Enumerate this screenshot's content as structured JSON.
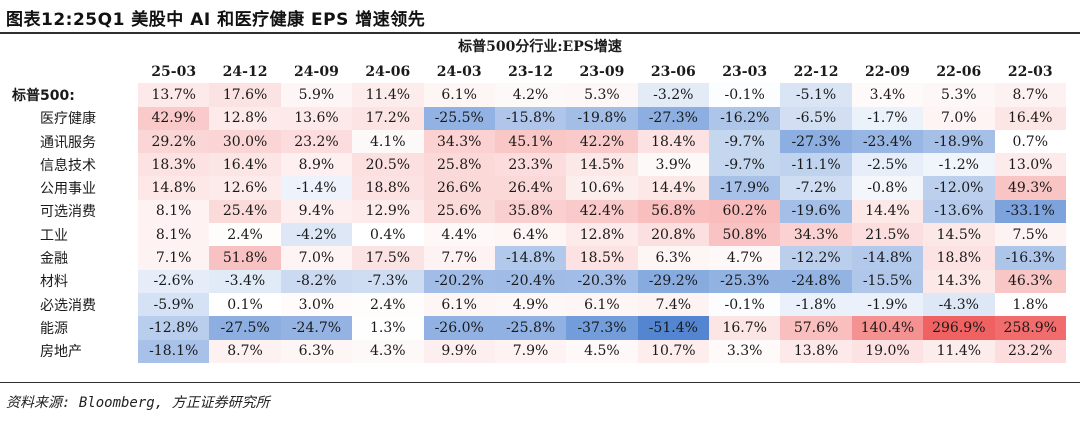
{
  "title": "图表12:25Q1 美股中 AI 和医疗健康 EPS 增速领先",
  "source": "资料来源: Bloomberg, 方正证券研究所",
  "chart_data": {
    "type": "heatmap",
    "title": "标普500分行业:EPS增速",
    "columns": [
      "25-03",
      "24-12",
      "24-09",
      "24-06",
      "24-03",
      "23-12",
      "23-09",
      "23-06",
      "23-03",
      "22-12",
      "22-09",
      "22-06",
      "22-03"
    ],
    "rows": [
      {
        "label": "标普500:",
        "values": [
          "13.7%",
          "17.6%",
          "5.9%",
          "11.4%",
          "6.1%",
          "4.2%",
          "5.3%",
          "-3.2%",
          "-0.1%",
          "-5.1%",
          "3.4%",
          "5.3%",
          "8.7%"
        ]
      },
      {
        "label": "医疗健康",
        "values": [
          "42.9%",
          "12.8%",
          "13.6%",
          "17.2%",
          "-25.5%",
          "-15.8%",
          "-19.8%",
          "-27.3%",
          "-16.2%",
          "-6.5%",
          "-1.7%",
          "7.0%",
          "16.4%"
        ]
      },
      {
        "label": "通讯服务",
        "values": [
          "29.2%",
          "30.0%",
          "23.2%",
          "4.1%",
          "34.3%",
          "45.1%",
          "42.2%",
          "18.4%",
          "-9.7%",
          "-27.3%",
          "-23.4%",
          "-18.9%",
          "0.7%"
        ]
      },
      {
        "label": "信息技术",
        "values": [
          "18.3%",
          "16.4%",
          "8.9%",
          "20.5%",
          "25.8%",
          "23.3%",
          "14.5%",
          "3.9%",
          "-9.7%",
          "-11.1%",
          "-2.5%",
          "-1.2%",
          "13.0%"
        ]
      },
      {
        "label": "公用事业",
        "values": [
          "14.8%",
          "12.6%",
          "-1.4%",
          "18.8%",
          "26.6%",
          "26.4%",
          "10.6%",
          "14.4%",
          "-17.9%",
          "-7.2%",
          "-0.8%",
          "-12.0%",
          "49.3%"
        ]
      },
      {
        "label": "可选消费",
        "values": [
          "8.1%",
          "25.4%",
          "9.4%",
          "12.9%",
          "25.6%",
          "35.8%",
          "42.4%",
          "56.8%",
          "60.2%",
          "-19.6%",
          "14.4%",
          "-13.6%",
          "-33.1%"
        ]
      },
      {
        "label": "工业",
        "values": [
          "8.1%",
          "2.4%",
          "-4.2%",
          "0.4%",
          "4.4%",
          "6.4%",
          "12.8%",
          "20.8%",
          "50.8%",
          "34.3%",
          "21.5%",
          "14.5%",
          "7.5%"
        ]
      },
      {
        "label": "金融",
        "values": [
          "7.1%",
          "51.8%",
          "7.0%",
          "17.5%",
          "7.7%",
          "-14.8%",
          "18.5%",
          "6.3%",
          "4.7%",
          "-12.2%",
          "-14.8%",
          "18.8%",
          "-16.3%"
        ]
      },
      {
        "label": "材料",
        "values": [
          "-2.6%",
          "-3.4%",
          "-8.2%",
          "-7.3%",
          "-20.2%",
          "-20.4%",
          "-20.3%",
          "-29.2%",
          "-25.3%",
          "-24.8%",
          "-15.5%",
          "14.3%",
          "46.3%"
        ]
      },
      {
        "label": "必选消费",
        "values": [
          "-5.9%",
          "0.1%",
          "3.0%",
          "2.4%",
          "6.1%",
          "4.9%",
          "6.1%",
          "7.4%",
          "-0.1%",
          "-1.8%",
          "-1.9%",
          "-4.3%",
          "1.8%"
        ]
      },
      {
        "label": "能源",
        "values": [
          "-12.8%",
          "-27.5%",
          "-24.7%",
          "1.3%",
          "-26.0%",
          "-25.8%",
          "-37.3%",
          "-51.4%",
          "16.7%",
          "57.6%",
          "140.4%",
          "296.9%",
          "258.9%"
        ]
      },
      {
        "label": "房地产",
        "values": [
          "-18.1%",
          "8.7%",
          "6.3%",
          "4.3%",
          "9.9%",
          "7.9%",
          "4.5%",
          "10.7%",
          "3.3%",
          "13.8%",
          "19.0%",
          "11.4%",
          "23.2%"
        ]
      }
    ],
    "colors": {
      "negative": "#4a7fcf",
      "positive": "#ef5a5a",
      "neutral": "#ffffff"
    }
  }
}
